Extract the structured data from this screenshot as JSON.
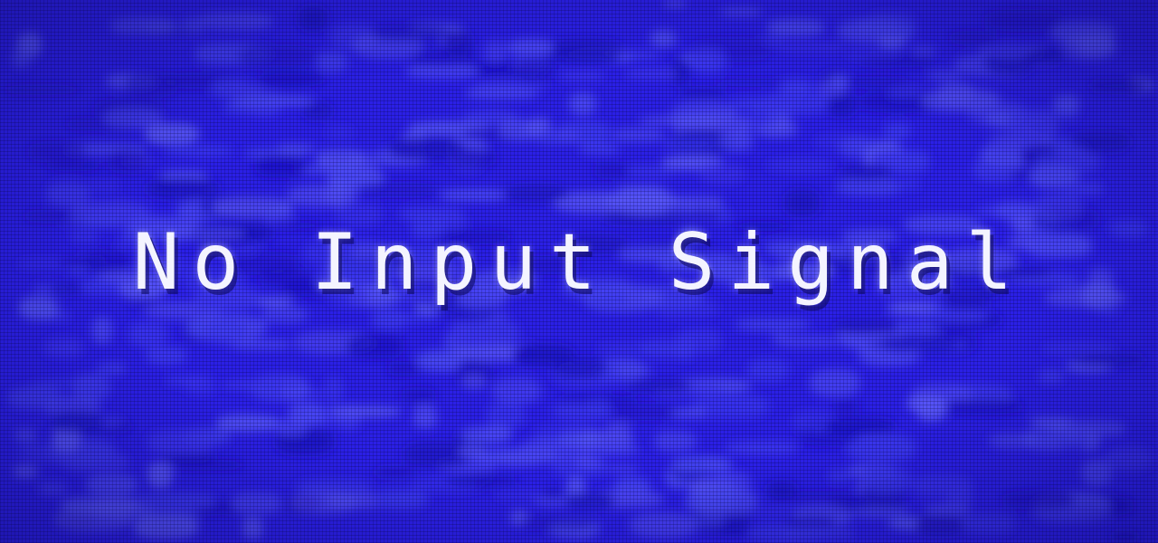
{
  "screen": {
    "message": "No Input Signal",
    "background_color": "#2b20e6",
    "noise_colors": [
      "#3b36f0",
      "#4a48f5",
      "#1e16c8",
      "#5654f7"
    ],
    "text_color": "#f4f4ff"
  }
}
